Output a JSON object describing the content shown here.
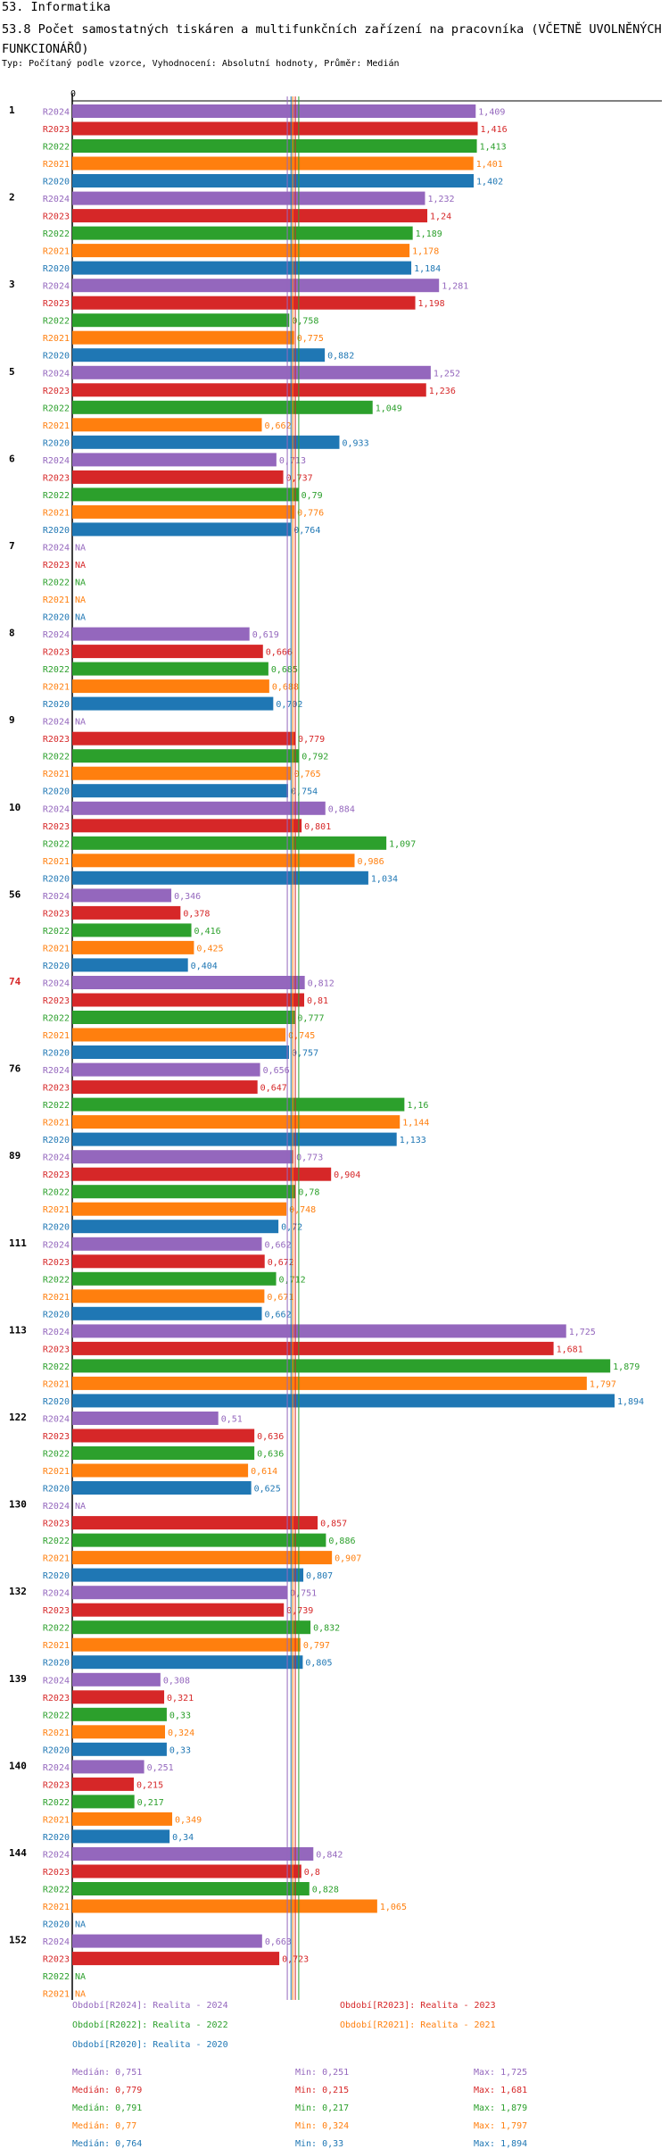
{
  "header": {
    "title": "53. Informatika",
    "subtitle": "53.8 Počet samostatných tiskáren a multifunkčních zařízení na pracovníka (VČETNĚ UVOLNĚNÝCH FUNKCIONÁŘŮ)",
    "type_line": "Typ: Počítaný podle vzorce, Vyhodnocení: Absolutní hodnoty, Průměr: Medián"
  },
  "colors": {
    "R2024": "#9467bd",
    "R2023": "#d62728",
    "R2022": "#2ca02c",
    "R2021": "#ff7f0e",
    "R2020": "#1f77b4"
  },
  "chart_data": {
    "type": "bar",
    "orientation": "horizontal",
    "axis_zero_label": "0",
    "x_range": [
      0,
      1.95
    ],
    "series_names": [
      "R2024",
      "R2023",
      "R2022",
      "R2021",
      "R2020"
    ],
    "median_lines": [
      0.751,
      0.779,
      0.791,
      0.77,
      0.764
    ],
    "groups": [
      {
        "label": "1",
        "values": [
          "1,409",
          "1,416",
          "1,413",
          "1,401",
          "1,402"
        ],
        "num": [
          1.409,
          1.416,
          1.413,
          1.401,
          1.402
        ]
      },
      {
        "label": "2",
        "values": [
          "1,232",
          "1,24",
          "1,189",
          "1,178",
          "1,184"
        ],
        "num": [
          1.232,
          1.24,
          1.189,
          1.178,
          1.184
        ]
      },
      {
        "label": "3",
        "values": [
          "1,281",
          "1,198",
          "0,758",
          "0,775",
          "0,882"
        ],
        "num": [
          1.281,
          1.198,
          0.758,
          0.775,
          0.882
        ]
      },
      {
        "label": "5",
        "values": [
          "1,252",
          "1,236",
          "1,049",
          "0,662",
          "0,933"
        ],
        "num": [
          1.252,
          1.236,
          1.049,
          0.662,
          0.933
        ]
      },
      {
        "label": "6",
        "values": [
          "0,713",
          "0,737",
          "0,79",
          "0,776",
          "0,764"
        ],
        "num": [
          0.713,
          0.737,
          0.79,
          0.776,
          0.764
        ]
      },
      {
        "label": "7",
        "values": [
          "NA",
          "NA",
          "NA",
          "NA",
          "NA"
        ],
        "num": [
          null,
          null,
          null,
          null,
          null
        ]
      },
      {
        "label": "8",
        "values": [
          "0,619",
          "0,666",
          "0,685",
          "0,688",
          "0,702"
        ],
        "num": [
          0.619,
          0.666,
          0.685,
          0.688,
          0.702
        ]
      },
      {
        "label": "9",
        "values": [
          "NA",
          "0,779",
          "0,792",
          "0,765",
          "0,754"
        ],
        "num": [
          null,
          0.779,
          0.792,
          0.765,
          0.754
        ]
      },
      {
        "label": "10",
        "values": [
          "0,884",
          "0,801",
          "1,097",
          "0,986",
          "1,034"
        ],
        "num": [
          0.884,
          0.801,
          1.097,
          0.986,
          1.034
        ]
      },
      {
        "label": "56",
        "values": [
          "0,346",
          "0,378",
          "0,416",
          "0,425",
          "0,404"
        ],
        "num": [
          0.346,
          0.378,
          0.416,
          0.425,
          0.404
        ]
      },
      {
        "label": "74",
        "values": [
          "0,812",
          "0,81",
          "0,777",
          "0,745",
          "0,757"
        ],
        "num": [
          0.812,
          0.81,
          0.777,
          0.745,
          0.757
        ],
        "highlight": true
      },
      {
        "label": "76",
        "values": [
          "0,656",
          "0,647",
          "1,16",
          "1,144",
          "1,133"
        ],
        "num": [
          0.656,
          0.647,
          1.16,
          1.144,
          1.133
        ]
      },
      {
        "label": "89",
        "values": [
          "0,773",
          "0,904",
          "0,78",
          "0,748",
          "0,72"
        ],
        "num": [
          0.773,
          0.904,
          0.78,
          0.748,
          0.72
        ]
      },
      {
        "label": "111",
        "values": [
          "0,662",
          "0,672",
          "0,712",
          "0,671",
          "0,662"
        ],
        "num": [
          0.662,
          0.672,
          0.712,
          0.671,
          0.662
        ]
      },
      {
        "label": "113",
        "values": [
          "1,725",
          "1,681",
          "1,879",
          "1,797",
          "1,894"
        ],
        "num": [
          1.725,
          1.681,
          1.879,
          1.797,
          1.894
        ]
      },
      {
        "label": "122",
        "values": [
          "0,51",
          "0,636",
          "0,636",
          "0,614",
          "0,625"
        ],
        "num": [
          0.51,
          0.636,
          0.636,
          0.614,
          0.625
        ]
      },
      {
        "label": "130",
        "values": [
          "NA",
          "0,857",
          "0,886",
          "0,907",
          "0,807"
        ],
        "num": [
          null,
          0.857,
          0.886,
          0.907,
          0.807
        ]
      },
      {
        "label": "132",
        "values": [
          "0,751",
          "0,739",
          "0,832",
          "0,797",
          "0,805"
        ],
        "num": [
          0.751,
          0.739,
          0.832,
          0.797,
          0.805
        ]
      },
      {
        "label": "139",
        "values": [
          "0,308",
          "0,321",
          "0,33",
          "0,324",
          "0,33"
        ],
        "num": [
          0.308,
          0.321,
          0.33,
          0.324,
          0.33
        ]
      },
      {
        "label": "140",
        "values": [
          "0,251",
          "0,215",
          "0,217",
          "0,349",
          "0,34"
        ],
        "num": [
          0.251,
          0.215,
          0.217,
          0.349,
          0.34
        ]
      },
      {
        "label": "144",
        "values": [
          "0,842",
          "0,8",
          "0,828",
          "1,065",
          "NA"
        ],
        "num": [
          0.842,
          0.8,
          0.828,
          1.065,
          null
        ]
      },
      {
        "label": "152",
        "values": [
          "0,663",
          "0,723",
          "NA",
          "NA",
          "NA"
        ],
        "num": [
          0.663,
          0.723,
          null,
          null,
          null
        ]
      }
    ]
  },
  "legend": {
    "periods": [
      {
        "key": "R2024",
        "text": "Období[R2024]: Realita - 2024"
      },
      {
        "key": "R2023",
        "text": "Období[R2023]: Realita - 2023"
      },
      {
        "key": "R2022",
        "text": "Období[R2022]: Realita - 2022"
      },
      {
        "key": "R2021",
        "text": "Období[R2021]: Realita - 2021"
      },
      {
        "key": "R2020",
        "text": "Období[R2020]: Realita - 2020"
      }
    ],
    "stats": [
      {
        "key": "R2024",
        "median": "Medián: 0,751",
        "min": "Min: 0,251",
        "max": "Max: 1,725"
      },
      {
        "key": "R2023",
        "median": "Medián: 0,779",
        "min": "Min: 0,215",
        "max": "Max: 1,681"
      },
      {
        "key": "R2022",
        "median": "Medián: 0,791",
        "min": "Min: 0,217",
        "max": "Max: 1,879"
      },
      {
        "key": "R2021",
        "median": "Medián: 0,77",
        "min": "Min: 0,324",
        "max": "Max: 1,797"
      },
      {
        "key": "R2020",
        "median": "Medián: 0,764",
        "min": "Min: 0,33",
        "max": "Max: 1,894"
      }
    ]
  }
}
